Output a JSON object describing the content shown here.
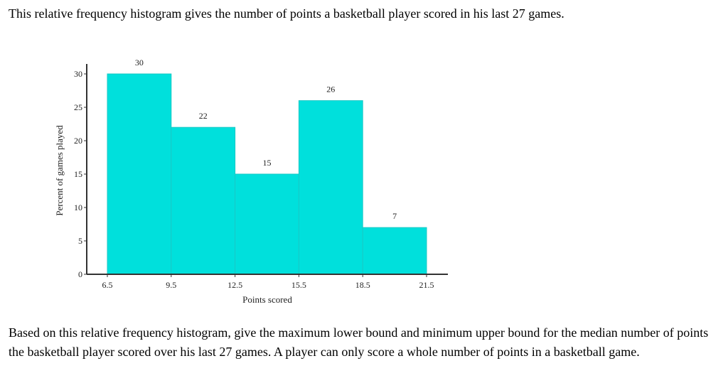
{
  "intro_text": "This relative frequency histogram gives the number of points a basketball player scored in his last 27 games.",
  "question_text": "Based on this relative frequency histogram, give the maximum lower bound and minimum upper bound for the median number of points the basketball player scored over his last 27 games. A player can only score a whole number of points in a basketball game.",
  "colors": {
    "bar_fill": "#00e0dc",
    "bar_stroke": "#19c9c6",
    "axis": "#333333"
  },
  "chart_data": {
    "type": "bar",
    "title": "",
    "xlabel": "Points scored",
    "ylabel": "Percent of games played",
    "bin_edges": [
      6.5,
      9.5,
      12.5,
      15.5,
      18.5,
      21.5
    ],
    "x_tick_labels": [
      "6.5",
      "9.5",
      "12.5",
      "15.5",
      "18.5",
      "21.5"
    ],
    "values": [
      30,
      22,
      15,
      26,
      7
    ],
    "data_labels": [
      "30",
      "22",
      "15",
      "26",
      "7"
    ],
    "y_ticks": [
      0,
      5,
      10,
      15,
      20,
      25,
      30
    ],
    "y_tick_labels": [
      "0",
      "5",
      "10",
      "15",
      "20",
      "25",
      "30"
    ],
    "xlim": [
      6.5,
      21.5
    ],
    "ylim": [
      0,
      30
    ],
    "grid": false,
    "legend": "none"
  }
}
